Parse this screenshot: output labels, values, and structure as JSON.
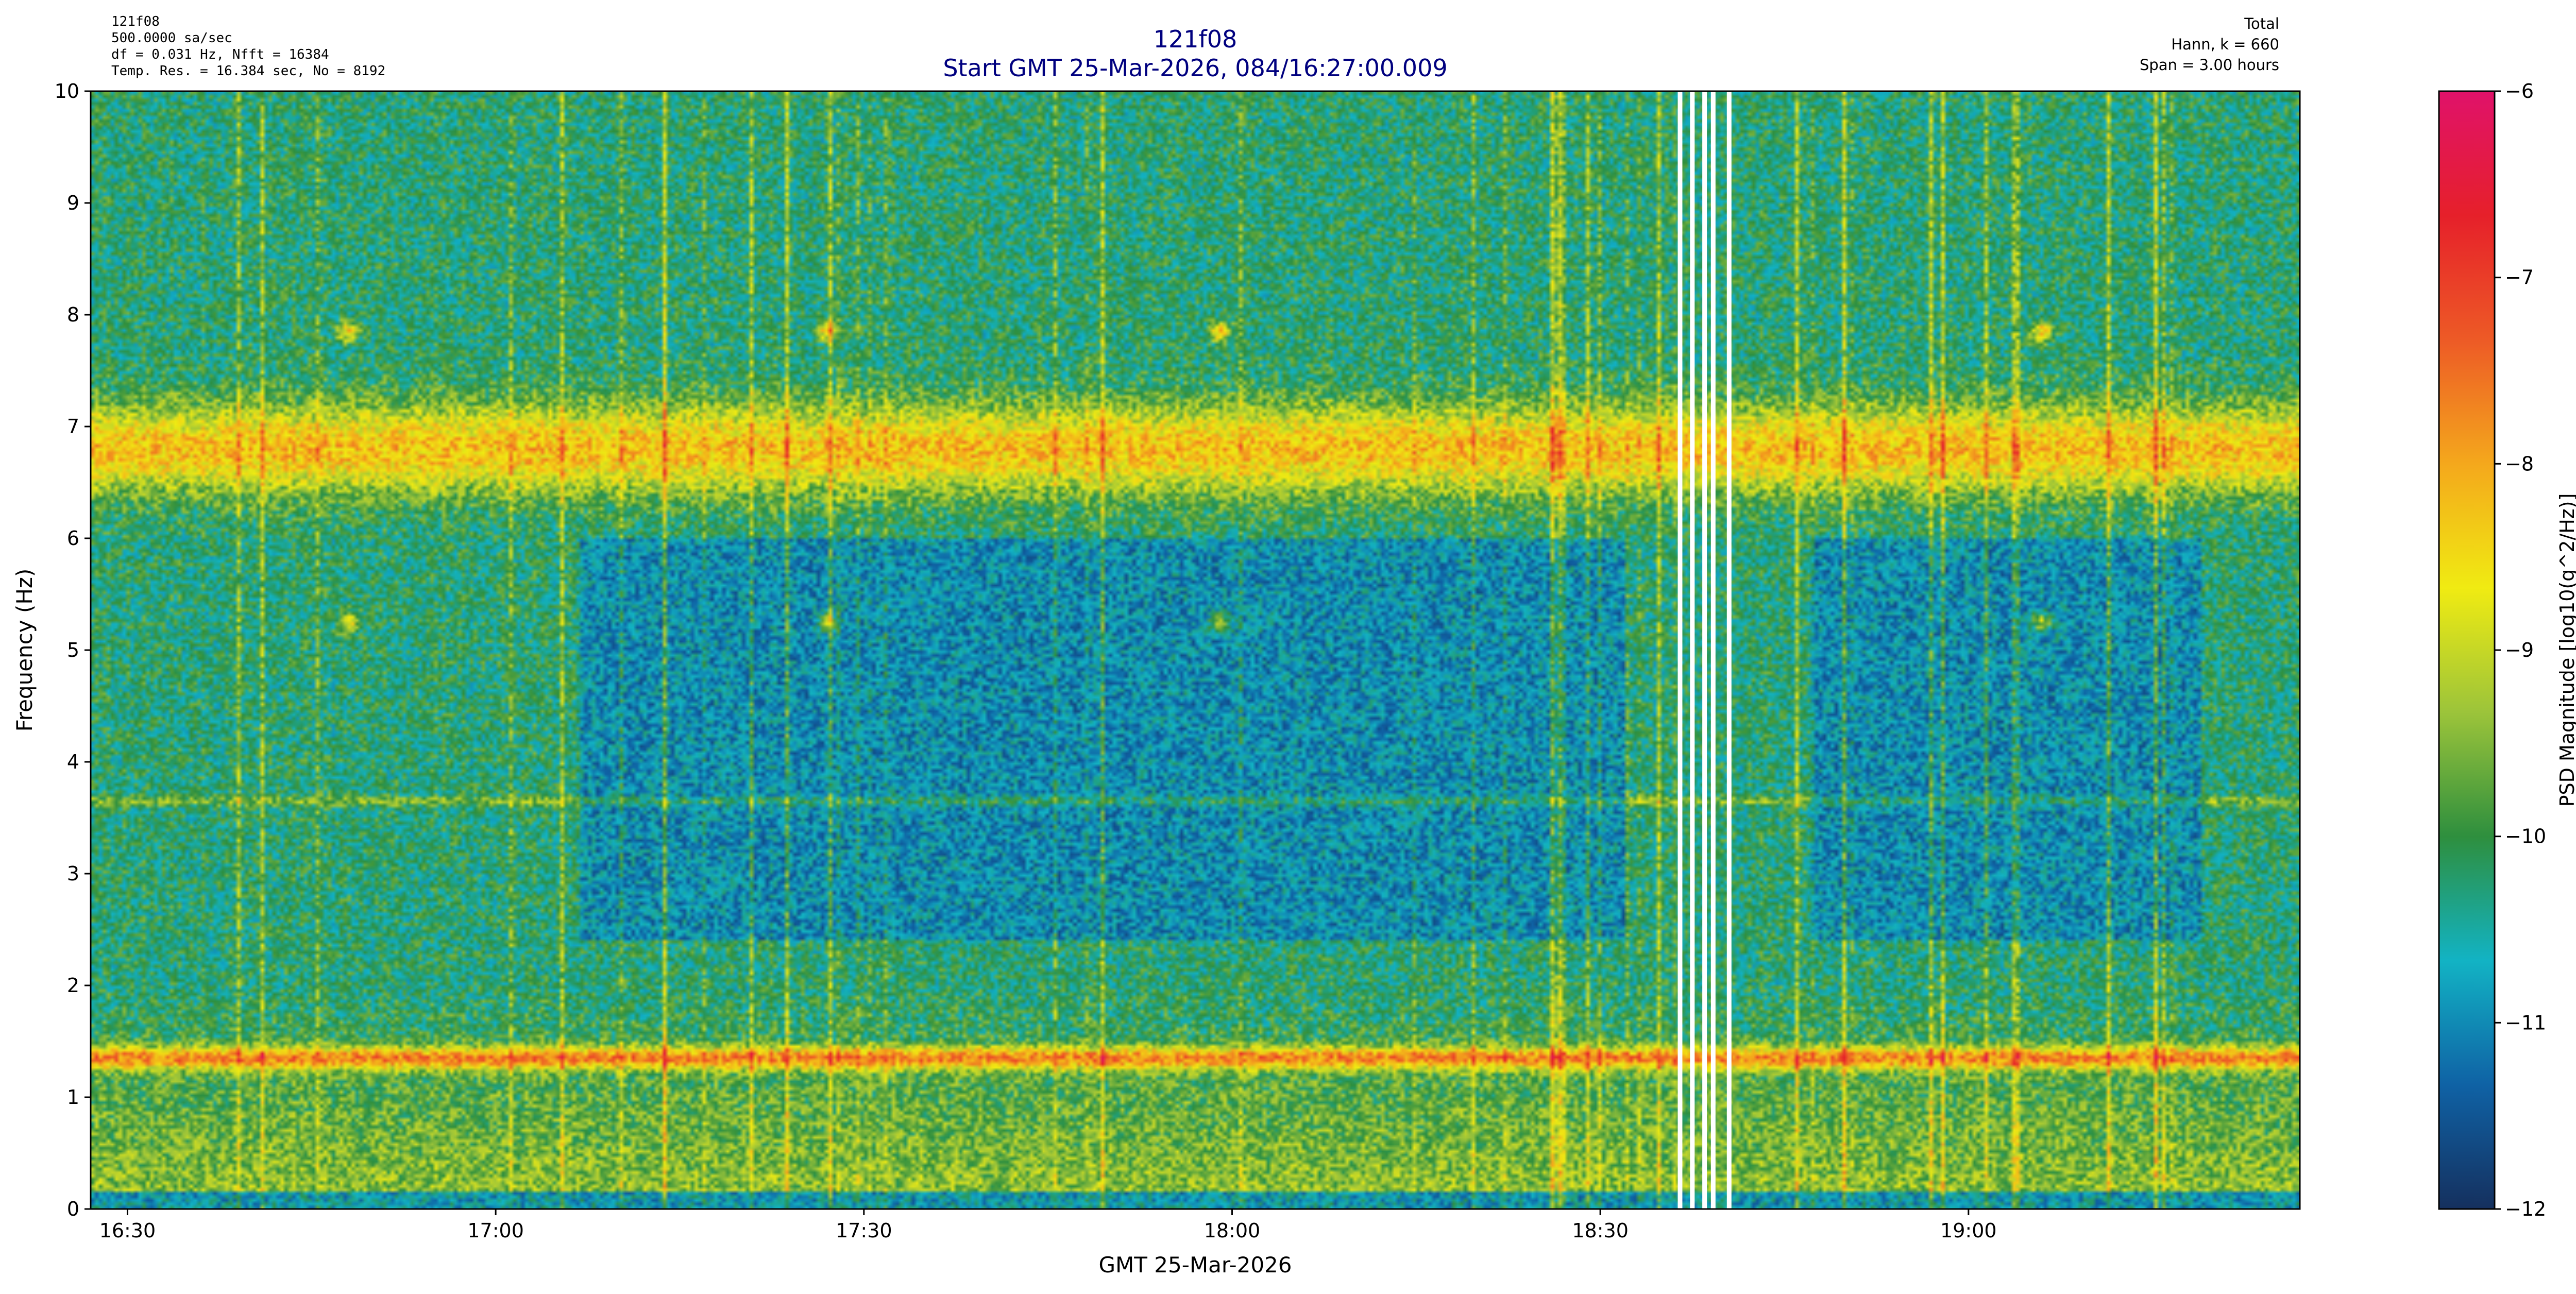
{
  "header": {
    "left_lines": [
      "121f08",
      "500.0000 sa/sec",
      "df = 0.031 Hz,  Nfft = 16384",
      "Temp. Res. = 16.384 sec, No = 8192"
    ],
    "right_lines": [
      "Total",
      "Hann, k = 660",
      "Span = 3.00 hours"
    ]
  },
  "chart_data": {
    "type": "heatmap",
    "title": "121f08",
    "subtitle": "Start GMT 25-Mar-2026, 084/16:27:00.009",
    "xlabel": "GMT 25-Mar-2026",
    "ylabel": "Frequency (Hz)",
    "x_range_minutes_after_1627": [
      0,
      180
    ],
    "x_ticks": [
      {
        "label": "16:30",
        "minute": 3
      },
      {
        "label": "17:00",
        "minute": 33
      },
      {
        "label": "17:30",
        "minute": 63
      },
      {
        "label": "18:00",
        "minute": 93
      },
      {
        "label": "18:30",
        "minute": 123
      },
      {
        "label": "19:00",
        "minute": 153
      }
    ],
    "ylim": [
      0,
      10
    ],
    "y_ticks": [
      0,
      1,
      2,
      3,
      4,
      5,
      6,
      7,
      8,
      9,
      10
    ],
    "colorbar": {
      "label": "PSD Magnitude [log10(g^2/Hz)]",
      "range": [
        -12,
        -6
      ],
      "ticks": [
        -12,
        -11,
        -10,
        -9,
        -8,
        -7,
        -6
      ],
      "tick_labels": [
        "−12",
        "−11",
        "−10",
        "−9",
        "−8",
        "−7",
        "−6"
      ],
      "colormap": [
        "#15305e",
        "#0f62a5",
        "#12b3c4",
        "#2e8f3e",
        "#9cc43a",
        "#f0eb12",
        "#f4a81c",
        "#ed5a26",
        "#e6202a",
        "#e0126a"
      ]
    },
    "data_gaps_minutes": [
      129.5,
      130.5,
      131.5,
      132.2,
      133.5
    ],
    "features": [
      {
        "name": "band",
        "freq_hz": 1.35,
        "level": -8.0
      },
      {
        "name": "band",
        "freq_hz": 6.8,
        "level": -8.3
      },
      {
        "name": "line",
        "freq_hz": 3.65,
        "level": -9.3
      },
      {
        "name": "spot",
        "freq_hz": 7.85,
        "level": -7.0
      },
      {
        "name": "spot",
        "freq_hz": 5.25,
        "level": -7.3
      }
    ],
    "grid": false
  }
}
